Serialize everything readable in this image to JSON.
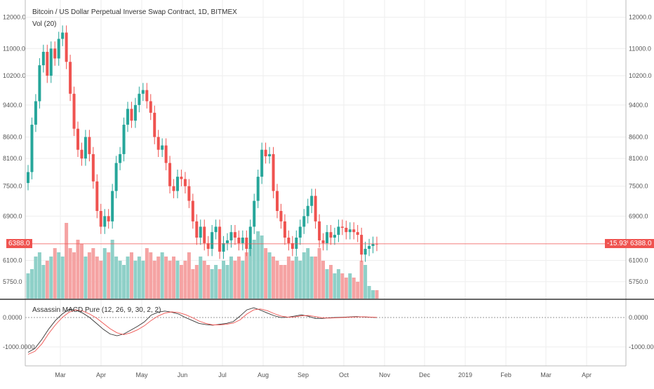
{
  "legend": {
    "symbol_title": "Bitcoin / US Dollar Perpetual Inverse Swap Contract, 1D, BITMEX",
    "volume_title": "Vol (20)",
    "macd_title": "Assassin MACD Pure (12, 26, 9, 30, 2, 2)"
  },
  "colors": {
    "up": "#26a69a",
    "down": "#ef5350",
    "volume_up": "#8fd0c8",
    "volume_down": "#f5a3a3",
    "macd_line": "#333333",
    "signal_line": "#ef5350",
    "last_price": "#ef5350",
    "grid": "#eeeeee",
    "axis_text": "#555555"
  },
  "price_badges": {
    "last_price_left": "6388.0",
    "change_pct": "-15.93%",
    "last_price_right": "6388.0"
  },
  "chart_data": [
    {
      "type": "candlestick",
      "title": "Bitcoin / US Dollar Perpetual Inverse Swap Contract, 1D, BITMEX",
      "scale": "log",
      "x_labels": [
        "Mar",
        "Apr",
        "May",
        "Jun",
        "Jul",
        "Aug",
        "Sep",
        "Oct",
        "Nov",
        "Dec",
        "2019",
        "Feb",
        "Mar",
        "Apr"
      ],
      "y_ticks": [
        5750.0,
        6100.0,
        6900.0,
        7500.0,
        8100.0,
        8600.0,
        9400.0,
        10200.0,
        11000.0,
        12000.0
      ],
      "y_tick_labels": [
        "5750.0",
        "6100.0",
        "6900.0",
        "7500.0",
        "8100.0",
        "8600.0",
        "9400.0",
        "10200.0",
        "11000.0",
        "12000.0"
      ],
      "last_price": 6388.0,
      "close_series": [
        7800,
        8900,
        9500,
        10500,
        10900,
        10200,
        11000,
        10700,
        11300,
        11500,
        10600,
        9700,
        8800,
        8300,
        8100,
        8600,
        8200,
        7600,
        7000,
        6700,
        6900,
        6800,
        7400,
        8000,
        8200,
        8900,
        9300,
        9000,
        9400,
        9700,
        9800,
        9500,
        9200,
        8600,
        8300,
        8400,
        8000,
        7500,
        7400,
        7700,
        7650,
        7500,
        7200,
        6800,
        6500,
        6700,
        6400,
        6300,
        6600,
        6700,
        6250,
        6400,
        6450,
        6600,
        6500,
        6400,
        6500,
        6300,
        6700,
        7200,
        7700,
        8300,
        8150,
        8200,
        7400,
        7000,
        6800,
        6500,
        6400,
        6300,
        6500,
        6700,
        6900,
        7100,
        7300,
        6800,
        6450,
        6400,
        6600,
        6500,
        6550,
        6700,
        6680,
        6600,
        6650,
        6600,
        6550,
        6200,
        6300,
        6350,
        6390,
        6388
      ],
      "volume": {
        "label": "Vol (20)",
        "values": [
          0.3,
          0.35,
          0.5,
          0.55,
          0.4,
          0.45,
          0.5,
          0.6,
          0.55,
          0.5,
          0.9,
          0.6,
          0.55,
          0.7,
          0.65,
          0.5,
          0.55,
          0.6,
          0.5,
          0.45,
          0.6,
          0.55,
          0.7,
          0.5,
          0.45,
          0.4,
          0.5,
          0.55,
          0.45,
          0.5,
          0.45,
          0.6,
          0.55,
          0.45,
          0.5,
          0.55,
          0.5,
          0.45,
          0.5,
          0.45,
          0.4,
          0.45,
          0.55,
          0.35,
          0.4,
          0.5,
          0.45,
          0.4,
          0.35,
          0.4,
          0.35,
          0.45,
          0.4,
          0.5,
          0.45,
          0.5,
          0.45,
          0.55,
          0.6,
          0.7,
          0.8,
          0.75,
          0.6,
          0.55,
          0.5,
          0.45,
          0.4,
          0.4,
          0.5,
          0.45,
          0.5,
          0.45,
          0.55,
          0.6,
          0.5,
          0.5,
          0.6,
          0.45,
          0.35,
          0.4,
          0.3,
          0.35,
          0.3,
          0.25,
          0.3,
          0.25,
          0.2,
          0.45,
          0.4,
          0.15,
          0.1,
          0.1
        ]
      }
    },
    {
      "type": "line",
      "title": "Assassin MACD Pure (12, 26, 9, 30, 2, 2)",
      "y_ticks": [
        0.0,
        -1000.0
      ],
      "y_tick_labels": [
        "0.0000",
        "-1000.0000"
      ],
      "series": [
        {
          "values": [
            -1180,
            -1050,
            -750,
            -400,
            -100,
            120,
            280,
            250,
            150,
            0,
            -200,
            -400,
            -560,
            -620,
            -560,
            -430,
            -300,
            -150,
            80,
            180,
            220,
            180,
            120,
            0,
            -100,
            -200,
            -240,
            -260,
            -230,
            -200,
            -140,
            50,
            260,
            330,
            250,
            150,
            60,
            0,
            10,
            50,
            90,
            40,
            -30,
            -30,
            -10,
            0,
            10,
            20,
            30,
            20,
            10,
            0
          ]
        },
        {
          "values": [
            -1250,
            -1150,
            -900,
            -550,
            -250,
            0,
            180,
            260,
            220,
            120,
            -20,
            -200,
            -380,
            -520,
            -580,
            -520,
            -420,
            -280,
            -100,
            50,
            150,
            190,
            170,
            100,
            0,
            -120,
            -200,
            -250,
            -250,
            -230,
            -190,
            -80,
            120,
            260,
            290,
            230,
            130,
            50,
            10,
            20,
            60,
            70,
            30,
            -10,
            -20,
            -10,
            0,
            10,
            20,
            25,
            15,
            5
          ]
        }
      ],
      "x_labels": [
        "Mar",
        "Apr",
        "May",
        "Jun",
        "Jul",
        "Aug",
        "Sep",
        "Oct",
        "Nov",
        "Dec",
        "2019",
        "Feb",
        "Mar",
        "Apr"
      ]
    }
  ]
}
